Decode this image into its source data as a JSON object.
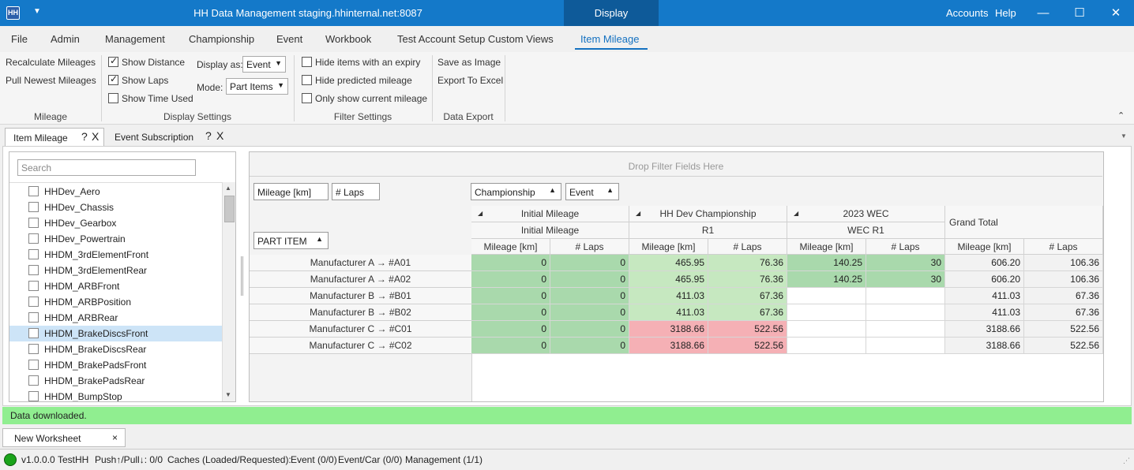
{
  "titlebar": {
    "title": "HH Data Management staging.hhinternal.net:8087",
    "context_tab": "Display Configuration",
    "accounts": "Accounts",
    "help": "Help",
    "minimize": "—",
    "maximize": "☐",
    "close": "✕",
    "app_icon": "HH",
    "qat": "▼"
  },
  "menu": [
    "File",
    "Admin",
    "Management",
    "Championship",
    "Event",
    "Workbook",
    "Test Account Setup Custom Views",
    "Item Mileage"
  ],
  "ribbon": {
    "mileage": {
      "recalc": "Recalculate Mileages",
      "pull": "Pull Newest Mileages",
      "label": "Mileage"
    },
    "display": {
      "show_distance": "Show Distance",
      "show_laps": "Show Laps",
      "show_time": "Show Time Used",
      "display_as_label": "Display as:",
      "display_as_value": "Event",
      "mode_label": "Mode:",
      "mode_value": "Part Items",
      "label": "Display Settings"
    },
    "filter": {
      "hide_expiry": "Hide items with an expiry",
      "hide_predicted": "Hide predicted mileage",
      "only_current": "Only show current mileage",
      "label": "Filter Settings"
    },
    "export": {
      "save_image": "Save as Image",
      "export_excel": "Export To Excel",
      "label": "Data Export"
    },
    "collapse": "⌃"
  },
  "doctabs": [
    {
      "label": "Item Mileage",
      "q": "?",
      "x": "X"
    },
    {
      "label": "Event Subscription",
      "q": "?",
      "x": "X"
    }
  ],
  "doctabs_menu": "▼",
  "fields": {
    "search_placeholder": "Search",
    "items": [
      "HHDev_Aero",
      "HHDev_Chassis",
      "HHDev_Gearbox",
      "HHDev_Powertrain",
      "HHDM_3rdElementFront",
      "HHDM_3rdElementRear",
      "HHDM_ARBFront",
      "HHDM_ARBPosition",
      "HHDM_ARBRear",
      "HHDM_BrakeDiscsFront",
      "HHDM_BrakeDiscsRear",
      "HHDM_BrakePadsFront",
      "HHDM_BrakePadsRear",
      "HHDM_BumpStop"
    ],
    "selected_index": 9
  },
  "pivot": {
    "drop_filter": "Drop Filter Fields Here",
    "data_fields": [
      "Mileage [km]",
      "# Laps"
    ],
    "column_fields": [
      "Championship",
      "Event"
    ],
    "row_field": "PART ITEM",
    "col_groups": [
      {
        "championship": "Initial Mileage",
        "event": "Initial Mileage"
      },
      {
        "championship": "HH Dev Championship",
        "event": "R1"
      },
      {
        "championship": "2023 WEC",
        "event": "WEC R1"
      }
    ],
    "grand_total": "Grand Total",
    "measure_headers": [
      "Mileage [km]",
      "# Laps"
    ],
    "rows": [
      {
        "label": "Manufacturer A → #A01",
        "values": [
          "0",
          "0",
          "465.95",
          "76.36",
          "140.25",
          "30",
          "606.20",
          "106.36"
        ]
      },
      {
        "label": "Manufacturer A → #A02",
        "values": [
          "0",
          "0",
          "465.95",
          "76.36",
          "140.25",
          "30",
          "606.20",
          "106.36"
        ]
      },
      {
        "label": "Manufacturer B → #B01",
        "values": [
          "0",
          "0",
          "411.03",
          "67.36",
          "",
          "",
          "411.03",
          "67.36"
        ]
      },
      {
        "label": "Manufacturer B → #B02",
        "values": [
          "0",
          "0",
          "411.03",
          "67.36",
          "",
          "",
          "411.03",
          "67.36"
        ]
      },
      {
        "label": "Manufacturer C → #C01",
        "values": [
          "0",
          "0",
          "3188.66",
          "522.56",
          "",
          "",
          "3188.66",
          "522.56"
        ]
      },
      {
        "label": "Manufacturer C → #C02",
        "values": [
          "0",
          "0",
          "3188.66",
          "522.56",
          "",
          "",
          "3188.66",
          "522.56"
        ]
      }
    ],
    "colors": {
      "green": "#a9d9ac",
      "light_green": "#c6e8c0",
      "red": "#f5b0b5",
      "total": "#f2f2f2"
    }
  },
  "status": {
    "message": "Data downloaded.",
    "worksheet_tab": "New Worksheet",
    "worksheet_close": "×",
    "version": "v1.0.0.0",
    "account": "TestHH",
    "push_pull": "Push↑/Pull↓: 0/0",
    "caches": "Caches (Loaded/Requested):",
    "event": "Event (0/0)",
    "eventcar": "Event/Car (0/0)",
    "management": "Management (1/1)",
    "led_color": "#1aa31a"
  }
}
